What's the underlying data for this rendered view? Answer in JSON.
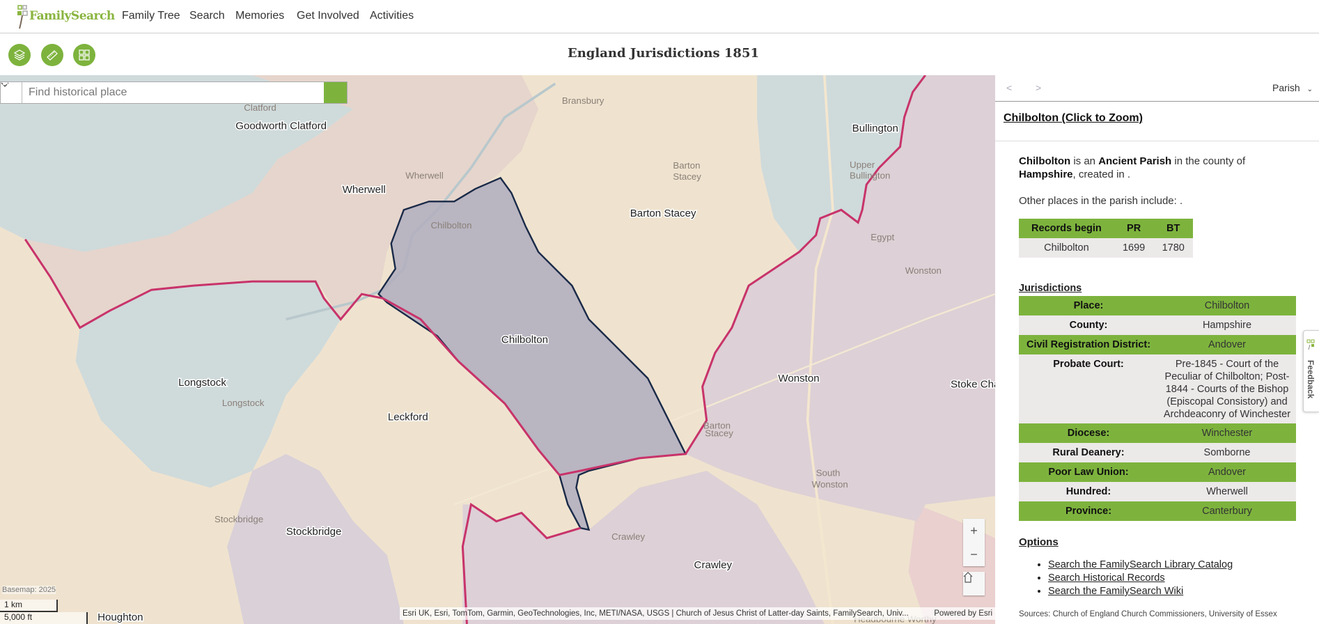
{
  "header": {
    "logo_text": "FamilySearch",
    "nav": [
      "Family Tree",
      "Search",
      "Memories",
      "Get Involved",
      "Activities"
    ]
  },
  "toolbar": {
    "title": "England Jurisdictions 1851",
    "buttons": [
      "layers-icon",
      "measure-icon",
      "grid-icon"
    ]
  },
  "search": {
    "placeholder": "Find historical place",
    "value": ""
  },
  "map": {
    "labels": {
      "goodworth_clatford": "Goodworth Clatford",
      "clatford": "Clatford",
      "bransbury": "Bransbury",
      "bullington": "Bullington",
      "upper": "Upper",
      "bullington2": "Bullington",
      "wherwell": "Wherwell",
      "wherwell_small": "Wherwell",
      "barton_stacey": "Barton Stacey",
      "barton": "Barton",
      "stacey": "Stacey",
      "chilbolton_small": "Chilbolton",
      "chilbolton": "Chilbolton",
      "egypt": "Egypt",
      "wonston_small": "Wonston",
      "longstock": "Longstock",
      "longstock_small": "Longstock",
      "wonston": "Wonston",
      "stoke_charity": "Stoke Cha",
      "leckford": "Leckford",
      "stockbridge_small": "Stockbridge",
      "stockbridge": "Stockbridge",
      "crawley_small": "Crawley",
      "crawley": "Crawley",
      "south": "South",
      "wonston2": "Wonston",
      "houghton": "Houghton",
      "headbourne_worthy": "Headbourne Worthy",
      "barton_small": "Barton",
      "stacey_small": "Stacey"
    },
    "basemap": "Basemap: 2025",
    "scale_km": "1 km",
    "scale_ft": "5,000 ft",
    "attribution": "Esri UK, Esri, TomTom, Garmin, GeoTechnologies, Inc, METI/NASA, USGS | Church of Jesus Christ of Latter-day Saints, FamilySearch, Univ...",
    "powered_by": "Powered by Esri",
    "zoom_in": "+",
    "zoom_out": "−",
    "colors": {
      "selected_fill": "#b3afbf",
      "boundary": "#c8336a",
      "selected_border": "#1a2a48"
    }
  },
  "sidebar": {
    "prev": "<",
    "next": ">",
    "level_select": "Parish",
    "title": "Chilbolton",
    "zoom_link": "(Click to Zoom)",
    "desc": {
      "name": "Chilbolton",
      "t1": " is an ",
      "type": "Ancient Parish",
      "t2": " in the county of ",
      "county": "Hampshire",
      "t3": ", created in ."
    },
    "other_places": "Other places in the parish include: .",
    "records": {
      "headers": [
        "Records begin",
        "PR",
        "BT"
      ],
      "row": [
        "Chilbolton",
        "1699",
        "1780"
      ]
    },
    "jurisdictions_heading": "Jurisdictions",
    "jurisdictions": [
      {
        "k": "Place:",
        "v": "Chilbolton"
      },
      {
        "k": "County:",
        "v": "Hampshire"
      },
      {
        "k": "Civil Registration District:",
        "v": "Andover"
      },
      {
        "k": "Probate Court:",
        "v": "Pre-1845 - Court of the Peculiar of Chilbolton; Post-1844 - Courts of the Bishop (Episcopal Consistory) and Archdeaconry of Winchester"
      },
      {
        "k": "Diocese:",
        "v": "Winchester"
      },
      {
        "k": "Rural Deanery:",
        "v": "Somborne"
      },
      {
        "k": "Poor Law Union:",
        "v": "Andover"
      },
      {
        "k": "Hundred:",
        "v": "Wherwell"
      },
      {
        "k": "Province:",
        "v": "Canterbury"
      }
    ],
    "options_heading": "Options",
    "options": [
      "Search the FamilySearch Library Catalog",
      "Search Historical Records",
      "Search the FamilySearch Wiki"
    ],
    "sources": "Sources: Church of England Church Commissioners, University of Essex",
    "feedback": "Feedback"
  }
}
